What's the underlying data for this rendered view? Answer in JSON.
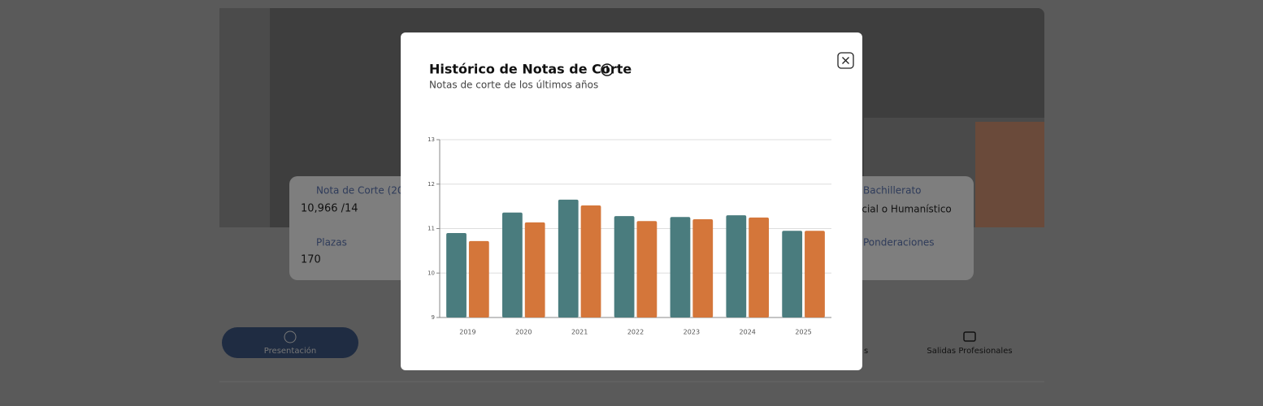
{
  "background": {
    "cards": [
      {
        "label": "Nota de Corte (20",
        "value": "10,966  /14"
      },
      {
        "label": "Plazas",
        "value": "170"
      },
      {
        "label": "Bachillerato",
        "value": "ocial o Humanístico"
      },
      {
        "label": "Ponderaciones"
      }
    ],
    "tabs": [
      "Presentación",
      "s",
      "Salidas Profesionales"
    ]
  },
  "chart_data": {
    "type": "bar",
    "title": "Histórico de Notas de Corte",
    "subtitle": "Notas de corte de los últimos años",
    "categories": [
      "2019",
      "2020",
      "2021",
      "2022",
      "2023",
      "2024",
      "2025"
    ],
    "series": [
      {
        "color": "#4a7c7e",
        "values": [
          10.9,
          11.36,
          11.65,
          11.28,
          11.26,
          11.3,
          10.95
        ]
      },
      {
        "color": "#d4763a",
        "values": [
          10.72,
          11.14,
          11.52,
          11.17,
          11.21,
          11.25,
          10.95
        ]
      }
    ],
    "ylim": [
      9,
      13
    ],
    "yticks": [
      9,
      10,
      11,
      12,
      13
    ],
    "grid": true
  }
}
